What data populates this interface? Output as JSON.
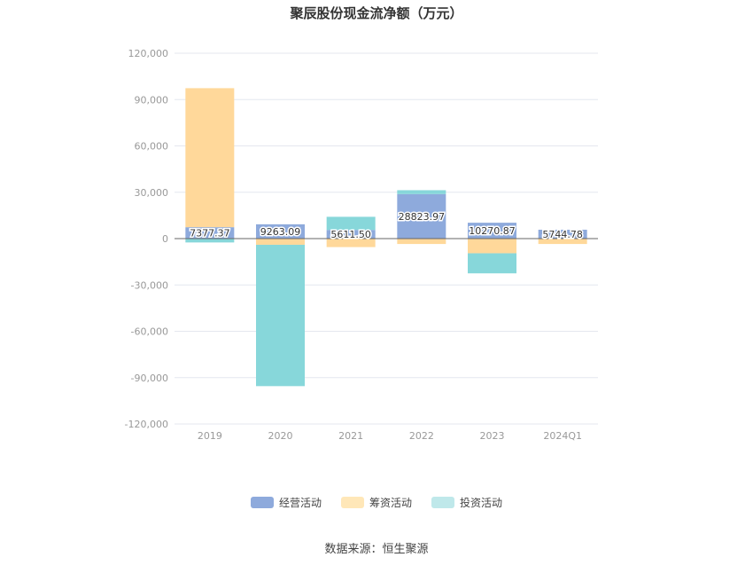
{
  "title": "聚辰股份现金流净额（万元）",
  "source": "数据来源：恒生聚源",
  "chart_data": {
    "type": "bar",
    "stacked": true,
    "categories": [
      "2019",
      "2020",
      "2021",
      "2022",
      "2023",
      "2024Q1"
    ],
    "series": [
      {
        "name": "经营活动",
        "color": "#8eaadc",
        "values": [
          7377.37,
          9263.09,
          5611.5,
          28823.97,
          10270.87,
          5744.78
        ]
      },
      {
        "name": "筹资活动",
        "color": "#ffd89a",
        "values": [
          90000,
          -4000,
          -5500,
          -3500,
          -9500,
          -3500
        ]
      },
      {
        "name": "投资活动",
        "color": "#87d7da",
        "values": [
          -2500,
          -91500,
          8500,
          2500,
          -13000,
          0
        ]
      }
    ],
    "data_labels": [
      "7377.37",
      "9263.09",
      "5611.50",
      "28823.97",
      "10270.87",
      "5744.78"
    ],
    "ylim": [
      -120000,
      120000
    ],
    "yticks": [
      120000,
      90000,
      60000,
      30000,
      0,
      -30000,
      -60000,
      -90000,
      -120000
    ],
    "ytick_labels": [
      "120,000",
      "90,000",
      "60,000",
      "30,000",
      "0",
      "-30,000",
      "-60,000",
      "-90,000",
      "-120,000"
    ],
    "grid": true,
    "legend": "bottom"
  }
}
